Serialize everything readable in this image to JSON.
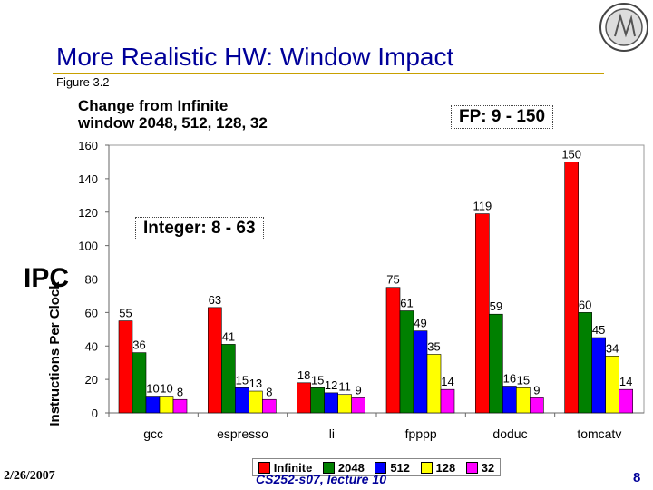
{
  "slide": {
    "title": "More Realistic HW: Window Impact",
    "figure_label": "Figure 3.2",
    "change_note_line1": "Change from Infinite",
    "change_note_line2": "window 2048, 512, 128, 32",
    "fp_range": "FP: 9 - 150",
    "int_range": "Integer: 8 - 63",
    "ipc_label": "IPC",
    "footer_date": "2/26/2007",
    "footer_lecture": "CS252-s07, lecture 10",
    "footer_page": "8"
  },
  "chart_data": {
    "type": "bar",
    "title": "",
    "xlabel": "",
    "ylabel": "Instructions Per Clock",
    "ylim": [
      0,
      160
    ],
    "yticks": [
      0,
      20,
      40,
      60,
      80,
      100,
      120,
      140,
      160
    ],
    "categories": [
      "gcc",
      "espresso",
      "li",
      "fpppp",
      "doduc",
      "tomcatv"
    ],
    "legend_position": "bottom",
    "series": [
      {
        "name": "Infinite",
        "color": "#ff0000",
        "values": [
          55,
          63,
          18,
          75,
          119,
          150
        ]
      },
      {
        "name": "2048",
        "color": "#008000",
        "values": [
          36,
          41,
          15,
          61,
          59,
          60
        ]
      },
      {
        "name": "512",
        "color": "#0000ff",
        "values": [
          10,
          15,
          12,
          49,
          16,
          45
        ]
      },
      {
        "name": "128",
        "color": "#ffff00",
        "values": [
          10,
          13,
          11,
          35,
          15,
          34
        ]
      },
      {
        "name": "32",
        "color": "#ff00ff",
        "values": [
          8,
          8,
          9,
          14,
          9,
          14
        ]
      }
    ]
  }
}
